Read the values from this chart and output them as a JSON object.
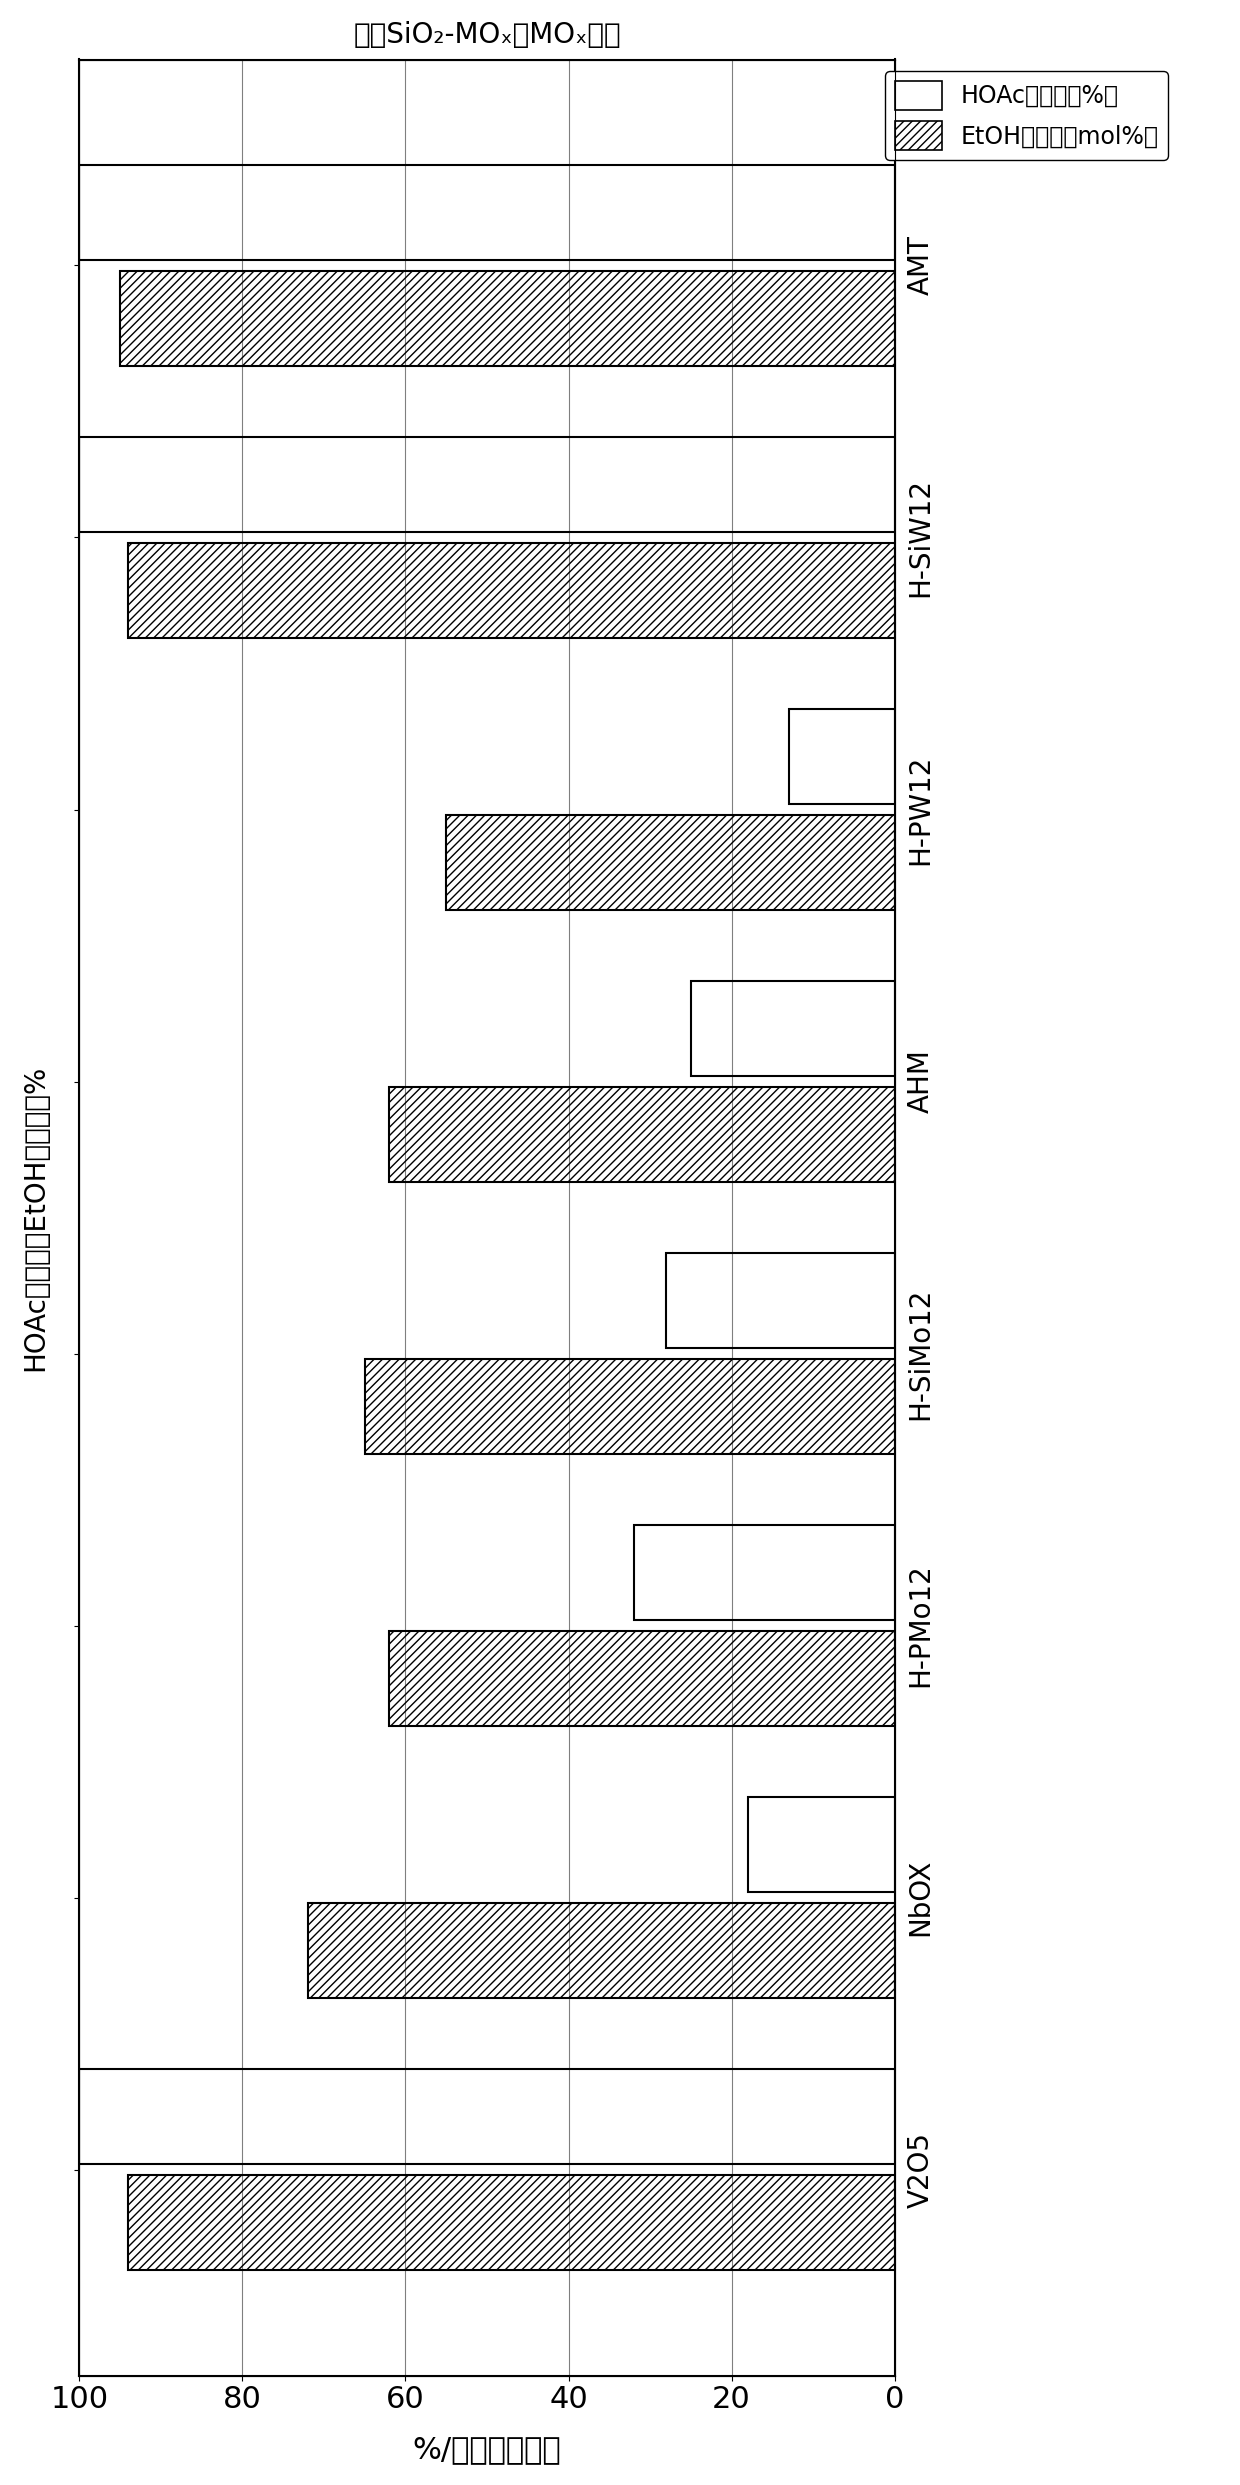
{
  "categories": [
    "AMT",
    "H-SiW12",
    "H-PW12",
    "AHM",
    "H-SiMo12",
    "H-PMo12",
    "NbOX",
    "V2O5"
  ],
  "hatch_pattern": "////",
  "bar_color_white": "#ffffff",
  "xlabel_bottom": "%/率化转媒丮转",
  "ylabel_left": "HOAc转化率和EtOH选择性，%",
  "x2label_top": "用于SiO₂-MOₓ的MOₓ前体",
  "xlim_left": 100,
  "xlim_right": 0,
  "xticks": [
    100,
    80,
    60,
    40,
    20,
    0
  ],
  "legend_hoac": "HOAc转化率（%）",
  "legend_etoh": "EtOH选择性（mol%）",
  "background_color": "#ffffff",
  "figsize": [
    12.4,
    24.85
  ],
  "dpi": 100,
  "data": [
    {
      "cat": "AMT",
      "hoac": 100,
      "etoh": 95
    },
    {
      "cat": "H-SiW12",
      "hoac": 100,
      "etoh": 94
    },
    {
      "cat": "H-PW12",
      "hoac": 13,
      "etoh": 55
    },
    {
      "cat": "AHM",
      "hoac": 25,
      "etoh": 62
    },
    {
      "cat": "H-SiMo12",
      "hoac": 28,
      "etoh": 65
    },
    {
      "cat": "H-PMo12",
      "hoac": 32,
      "etoh": 62
    },
    {
      "cat": "NbOX",
      "hoac": 18,
      "etoh": 72
    },
    {
      "cat": "V2O5",
      "hoac": 100,
      "etoh": 94
    }
  ]
}
